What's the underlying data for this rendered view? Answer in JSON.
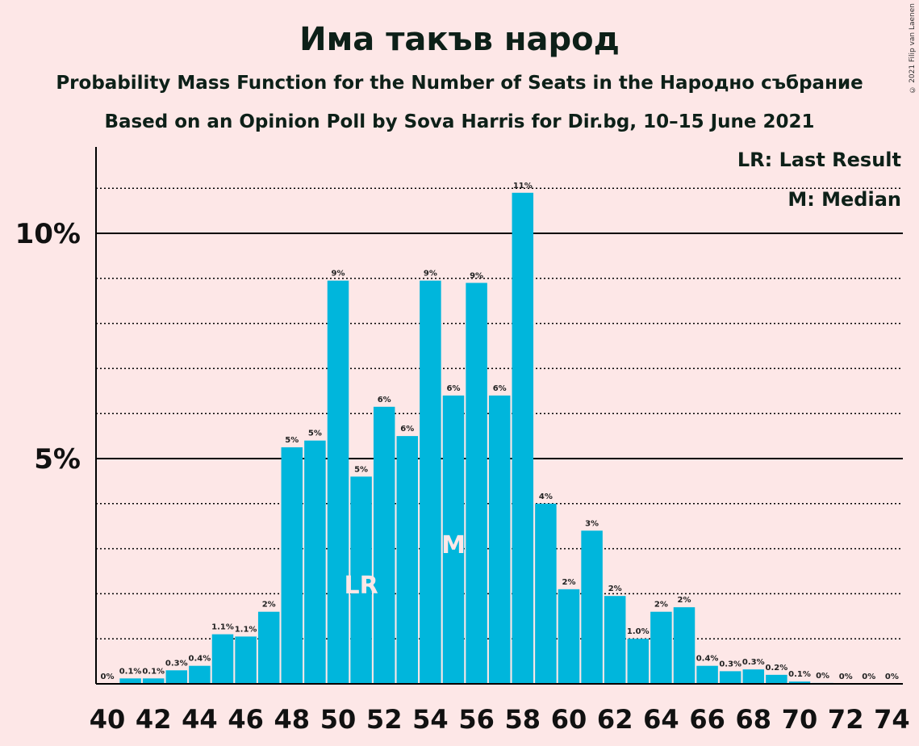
{
  "chart_data": {
    "type": "bar",
    "title": "Има такъв народ",
    "subtitle": "Probability Mass Function for the Number of Seats in the Народно събрание",
    "subtitle2": "Based on an Opinion Poll by Sova Harris for Dir.bg, 10–15 June 2021",
    "copyright": "© 2021 Filip van Laenen",
    "legend": [
      "LR: Last Result",
      "M: Median"
    ],
    "legend_placement": "top-right",
    "x": [
      40,
      41,
      42,
      43,
      44,
      45,
      46,
      47,
      48,
      49,
      50,
      51,
      52,
      53,
      54,
      55,
      56,
      57,
      58,
      59,
      60,
      61,
      62,
      63,
      64,
      65,
      66,
      67,
      68,
      69,
      70,
      71,
      72,
      73,
      74
    ],
    "values": [
      0,
      0.12,
      0.12,
      0.3,
      0.4,
      1.1,
      1.05,
      1.6,
      5.25,
      5.4,
      8.95,
      4.6,
      6.15,
      5.5,
      8.95,
      6.4,
      8.9,
      6.4,
      10.9,
      4.0,
      2.1,
      3.4,
      1.95,
      1.0,
      1.6,
      1.7,
      0.4,
      0.28,
      0.32,
      0.2,
      0.05,
      0.02,
      0,
      0,
      0
    ],
    "labels": [
      "0%",
      "0.1%",
      "0.1%",
      "0.3%",
      "0.4%",
      "1.1%",
      "1.1%",
      "2%",
      "5%",
      "5%",
      "9%",
      "5%",
      "6%",
      "6%",
      "9%",
      "6%",
      "9%",
      "6%",
      "11%",
      "4%",
      "2%",
      "3%",
      "2%",
      "1.0%",
      "2%",
      "2%",
      "0.4%",
      "0.3%",
      "0.3%",
      "0.2%",
      "0.1%",
      "0%",
      "0%",
      "0%",
      "0%"
    ],
    "x_tick_labels": [
      "40",
      "42",
      "44",
      "46",
      "48",
      "50",
      "52",
      "54",
      "56",
      "58",
      "60",
      "62",
      "64",
      "66",
      "68",
      "70",
      "72",
      "74"
    ],
    "y_tick_labels": [
      "5%",
      "10%"
    ],
    "y_ticks": [
      5,
      10
    ],
    "y_minor_gridlines": [
      1,
      2,
      3,
      4,
      6,
      7,
      8,
      9,
      11
    ],
    "ylim": [
      0,
      11.9
    ],
    "last_result_seat": 51,
    "last_result_label": "LR",
    "median_seat": 55,
    "median_label": "M",
    "colors": {
      "bar": "#00b6dc",
      "background": "#fde7e7",
      "axis": "#000000",
      "marker_text": "#fde7e7"
    }
  }
}
